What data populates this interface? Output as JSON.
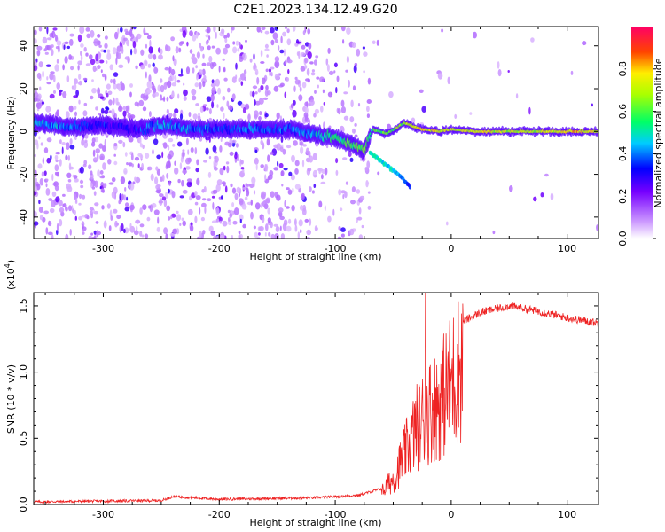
{
  "figure": {
    "title": "C2E1.2023.134.12.49.G20"
  },
  "chart_data": [
    {
      "type": "heatmap",
      "title": "C2E1.2023.134.12.49.G20",
      "xlabel": "Height of straight line (km)",
      "ylabel": "Frequency (Hz)",
      "xlim": [
        -360,
        127
      ],
      "ylim": [
        -50,
        49
      ],
      "x_ticks": [
        -300,
        -200,
        -100,
        0,
        100
      ],
      "y_ticks": [
        -40,
        -20,
        0,
        20,
        40
      ],
      "x_tick_labels": [
        "-300",
        "-200",
        "-100",
        "0",
        "100"
      ],
      "y_tick_labels": [
        "-40",
        "-20",
        "0",
        "20",
        "40"
      ],
      "colorbar": {
        "label": "Normalized spectral amplitude",
        "range": [
          0.0,
          1.0
        ],
        "ticks": [
          0.0,
          0.2,
          0.4,
          0.6,
          0.8
        ],
        "tick_labels": [
          "0.0",
          "0.2",
          "0.4",
          "0.6",
          "0.8"
        ],
        "colors": [
          "#ffffff",
          "#b066ff",
          "#5500ff",
          "#0000ff",
          "#00ffff",
          "#00ff00",
          "#ffff00",
          "#ff0000",
          "#ff0066"
        ]
      },
      "main_band": [
        {
          "x": -355,
          "f": 4,
          "amp": 0.45
        },
        {
          "x": -330,
          "f": 2,
          "amp": 0.4
        },
        {
          "x": -300,
          "f": 3,
          "amp": 0.3
        },
        {
          "x": -270,
          "f": 1,
          "amp": 0.3
        },
        {
          "x": -250,
          "f": 3,
          "amp": 0.45
        },
        {
          "x": -225,
          "f": 1,
          "amp": 0.4
        },
        {
          "x": -200,
          "f": 1,
          "amp": 0.35
        },
        {
          "x": -170,
          "f": 1,
          "amp": 0.4
        },
        {
          "x": -140,
          "f": 1,
          "amp": 0.35
        },
        {
          "x": -120,
          "f": -1,
          "amp": 0.45
        },
        {
          "x": -100,
          "f": -3,
          "amp": 0.55
        },
        {
          "x": -85,
          "f": -6,
          "amp": 0.6
        },
        {
          "x": -75,
          "f": -9,
          "amp": 0.6
        },
        {
          "x": -68,
          "f": 1,
          "amp": 0.55
        },
        {
          "x": -55,
          "f": -1,
          "amp": 0.6
        },
        {
          "x": -40,
          "f": 4,
          "amp": 0.65
        },
        {
          "x": -25,
          "f": 1,
          "amp": 0.75
        },
        {
          "x": -10,
          "f": 0,
          "amp": 0.75
        },
        {
          "x": 0,
          "f": 1,
          "amp": 0.7
        },
        {
          "x": 20,
          "f": 0,
          "amp": 0.75
        },
        {
          "x": 50,
          "f": 0,
          "amp": 0.7
        },
        {
          "x": 80,
          "f": 0,
          "amp": 0.7
        },
        {
          "x": 110,
          "f": 0,
          "amp": 0.8
        },
        {
          "x": 127,
          "f": 0,
          "amp": 0.7
        }
      ],
      "branch": [
        {
          "x": -70,
          "f": -10,
          "amp": 0.5
        },
        {
          "x": -60,
          "f": -14,
          "amp": 0.5
        },
        {
          "x": -50,
          "f": -18,
          "amp": 0.45
        },
        {
          "x": -42,
          "f": -22,
          "amp": 0.4
        },
        {
          "x": -35,
          "f": -26,
          "amp": 0.3
        }
      ]
    },
    {
      "type": "line",
      "xlabel": "Height of straight line (km)",
      "ylabel": "SNR (10 * v/v)",
      "y_multiplier": "(x10",
      "y_multiplier_exp": "4",
      "y_multiplier_close": ")",
      "xlim": [
        -360,
        127
      ],
      "ylim": [
        0,
        1.6
      ],
      "x_ticks": [
        -300,
        -200,
        -100,
        0,
        100
      ],
      "y_ticks": [
        0.0,
        0.5,
        1.0,
        1.5
      ],
      "x_tick_labels": [
        "-300",
        "-200",
        "-100",
        "0",
        "100"
      ],
      "y_tick_labels": [
        "0.0",
        "0.5",
        "1.0",
        "1.5"
      ],
      "line_color": "#ee2222",
      "envelope": [
        {
          "x": -360,
          "y": 0.02
        },
        {
          "x": -250,
          "y": 0.03
        },
        {
          "x": -240,
          "y": 0.06
        },
        {
          "x": -200,
          "y": 0.04
        },
        {
          "x": -120,
          "y": 0.05
        },
        {
          "x": -80,
          "y": 0.07
        },
        {
          "x": -60,
          "y": 0.12
        },
        {
          "x": -50,
          "y": 0.25
        },
        {
          "x": -40,
          "y": 0.5
        },
        {
          "x": -30,
          "y": 0.75
        },
        {
          "x": -20,
          "y": 0.9
        },
        {
          "x": -10,
          "y": 1.0
        },
        {
          "x": 0,
          "y": 1.2
        },
        {
          "x": 10,
          "y": 1.38
        },
        {
          "x": 25,
          "y": 1.45
        },
        {
          "x": 50,
          "y": 1.5
        },
        {
          "x": 75,
          "y": 1.46
        },
        {
          "x": 100,
          "y": 1.41
        },
        {
          "x": 127,
          "y": 1.37
        }
      ],
      "peak": {
        "x": -22,
        "y": 1.6
      }
    }
  ]
}
